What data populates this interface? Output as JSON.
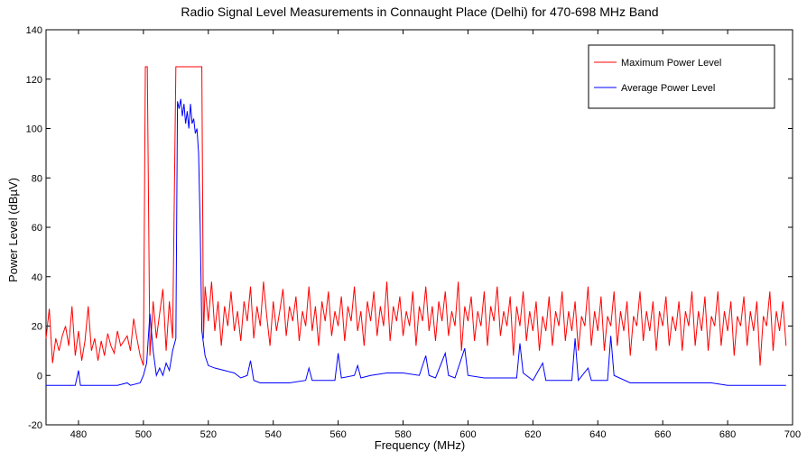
{
  "chart_data": {
    "type": "line",
    "title": "Radio Signal Level Measurements in Connaught Place (Delhi) for 470-698 MHz Band",
    "xlabel": "Frequency (MHz)",
    "ylabel": "Power Level (dBµV)",
    "xlim": [
      470,
      700
    ],
    "ylim": [
      -20,
      140
    ],
    "xticks": [
      480,
      500,
      520,
      540,
      560,
      580,
      600,
      620,
      640,
      660,
      680,
      700
    ],
    "yticks": [
      -20,
      0,
      20,
      40,
      60,
      80,
      100,
      120,
      140
    ],
    "grid": false,
    "legend_position": "top-right",
    "colors": {
      "max": "#ff0000",
      "avg": "#0000ff"
    },
    "series": [
      {
        "name": "Maximum Power Level",
        "points": [
          [
            470,
            15
          ],
          [
            471,
            27
          ],
          [
            472,
            5
          ],
          [
            473,
            15
          ],
          [
            474,
            10
          ],
          [
            475,
            16
          ],
          [
            476,
            20
          ],
          [
            477,
            12
          ],
          [
            478,
            28
          ],
          [
            479,
            8
          ],
          [
            480,
            18
          ],
          [
            481,
            6
          ],
          [
            482,
            14
          ],
          [
            483,
            28
          ],
          [
            484,
            10
          ],
          [
            485,
            15
          ],
          [
            486,
            6
          ],
          [
            487,
            14
          ],
          [
            488,
            8
          ],
          [
            489,
            17
          ],
          [
            490,
            12
          ],
          [
            491,
            9
          ],
          [
            492,
            18
          ],
          [
            493,
            12
          ],
          [
            494,
            14
          ],
          [
            495,
            16
          ],
          [
            496,
            10
          ],
          [
            497,
            23
          ],
          [
            498,
            15
          ],
          [
            499,
            8
          ],
          [
            500,
            4
          ],
          [
            500.6,
            125
          ],
          [
            501.2,
            125
          ],
          [
            502,
            8
          ],
          [
            503,
            30
          ],
          [
            504,
            15
          ],
          [
            505,
            25
          ],
          [
            506,
            35
          ],
          [
            507,
            10
          ],
          [
            508,
            30
          ],
          [
            509,
            15
          ],
          [
            510,
            125
          ],
          [
            518,
            125
          ],
          [
            518.5,
            15
          ],
          [
            519,
            36
          ],
          [
            520,
            22
          ],
          [
            521,
            38
          ],
          [
            522,
            18
          ],
          [
            523,
            30
          ],
          [
            524,
            12
          ],
          [
            525,
            28
          ],
          [
            526,
            20
          ],
          [
            527,
            34
          ],
          [
            528,
            18
          ],
          [
            529,
            26
          ],
          [
            530,
            14
          ],
          [
            531,
            30
          ],
          [
            532,
            22
          ],
          [
            533,
            36
          ],
          [
            534,
            15
          ],
          [
            535,
            28
          ],
          [
            536,
            20
          ],
          [
            537,
            38
          ],
          [
            538,
            24
          ],
          [
            539,
            12
          ],
          [
            540,
            30
          ],
          [
            541,
            18
          ],
          [
            542,
            26
          ],
          [
            543,
            35
          ],
          [
            544,
            16
          ],
          [
            545,
            28
          ],
          [
            546,
            22
          ],
          [
            547,
            32
          ],
          [
            548,
            14
          ],
          [
            549,
            26
          ],
          [
            550,
            20
          ],
          [
            551,
            36
          ],
          [
            552,
            18
          ],
          [
            553,
            28
          ],
          [
            554,
            12
          ],
          [
            555,
            30
          ],
          [
            556,
            22
          ],
          [
            557,
            34
          ],
          [
            558,
            16
          ],
          [
            559,
            26
          ],
          [
            560,
            20
          ],
          [
            561,
            32
          ],
          [
            562,
            14
          ],
          [
            563,
            28
          ],
          [
            564,
            22
          ],
          [
            565,
            36
          ],
          [
            566,
            18
          ],
          [
            567,
            26
          ],
          [
            568,
            12
          ],
          [
            569,
            30
          ],
          [
            570,
            22
          ],
          [
            571,
            34
          ],
          [
            572,
            16
          ],
          [
            573,
            28
          ],
          [
            574,
            20
          ],
          [
            575,
            38
          ],
          [
            576,
            14
          ],
          [
            577,
            28
          ],
          [
            578,
            22
          ],
          [
            579,
            32
          ],
          [
            580,
            16
          ],
          [
            581,
            26
          ],
          [
            582,
            20
          ],
          [
            583,
            34
          ],
          [
            584,
            12
          ],
          [
            585,
            28
          ],
          [
            586,
            22
          ],
          [
            587,
            36
          ],
          [
            588,
            18
          ],
          [
            589,
            28
          ],
          [
            590,
            14
          ],
          [
            591,
            30
          ],
          [
            592,
            22
          ],
          [
            593,
            34
          ],
          [
            594,
            16
          ],
          [
            595,
            26
          ],
          [
            596,
            20
          ],
          [
            597,
            38
          ],
          [
            598,
            10
          ],
          [
            599,
            28
          ],
          [
            600,
            22
          ],
          [
            601,
            32
          ],
          [
            602,
            14
          ],
          [
            603,
            26
          ],
          [
            604,
            20
          ],
          [
            605,
            34
          ],
          [
            606,
            12
          ],
          [
            607,
            28
          ],
          [
            608,
            22
          ],
          [
            609,
            36
          ],
          [
            610,
            16
          ],
          [
            611,
            26
          ],
          [
            612,
            20
          ],
          [
            613,
            32
          ],
          [
            614,
            8
          ],
          [
            615,
            28
          ],
          [
            616,
            20
          ],
          [
            617,
            34
          ],
          [
            618,
            14
          ],
          [
            619,
            26
          ],
          [
            620,
            18
          ],
          [
            621,
            30
          ],
          [
            622,
            10
          ],
          [
            623,
            24
          ],
          [
            624,
            18
          ],
          [
            625,
            32
          ],
          [
            626,
            12
          ],
          [
            627,
            26
          ],
          [
            628,
            20
          ],
          [
            629,
            34
          ],
          [
            630,
            14
          ],
          [
            631,
            26
          ],
          [
            632,
            18
          ],
          [
            633,
            30
          ],
          [
            634,
            10
          ],
          [
            635,
            24
          ],
          [
            636,
            20
          ],
          [
            637,
            36
          ],
          [
            638,
            12
          ],
          [
            639,
            26
          ],
          [
            640,
            18
          ],
          [
            641,
            32
          ],
          [
            642,
            10
          ],
          [
            643,
            24
          ],
          [
            644,
            20
          ],
          [
            645,
            34
          ],
          [
            646,
            12
          ],
          [
            647,
            26
          ],
          [
            648,
            18
          ],
          [
            649,
            30
          ],
          [
            650,
            8
          ],
          [
            651,
            24
          ],
          [
            652,
            20
          ],
          [
            653,
            34
          ],
          [
            654,
            14
          ],
          [
            655,
            26
          ],
          [
            656,
            18
          ],
          [
            657,
            30
          ],
          [
            658,
            10
          ],
          [
            659,
            26
          ],
          [
            660,
            20
          ],
          [
            661,
            32
          ],
          [
            662,
            12
          ],
          [
            663,
            24
          ],
          [
            664,
            18
          ],
          [
            665,
            30
          ],
          [
            666,
            10
          ],
          [
            667,
            26
          ],
          [
            668,
            20
          ],
          [
            669,
            34
          ],
          [
            670,
            12
          ],
          [
            671,
            26
          ],
          [
            672,
            18
          ],
          [
            673,
            32
          ],
          [
            674,
            10
          ],
          [
            675,
            24
          ],
          [
            676,
            20
          ],
          [
            677,
            34
          ],
          [
            678,
            12
          ],
          [
            679,
            26
          ],
          [
            680,
            18
          ],
          [
            681,
            30
          ],
          [
            682,
            8
          ],
          [
            683,
            24
          ],
          [
            684,
            20
          ],
          [
            685,
            32
          ],
          [
            686,
            12
          ],
          [
            687,
            26
          ],
          [
            688,
            18
          ],
          [
            689,
            30
          ],
          [
            690,
            4
          ],
          [
            691,
            24
          ],
          [
            692,
            20
          ],
          [
            693,
            34
          ],
          [
            694,
            10
          ],
          [
            695,
            26
          ],
          [
            696,
            18
          ],
          [
            697,
            30
          ],
          [
            698,
            12
          ]
        ]
      },
      {
        "name": "Average Power Level",
        "points": [
          [
            470,
            -4
          ],
          [
            479,
            -4
          ],
          [
            480,
            2
          ],
          [
            480.6,
            -4
          ],
          [
            492,
            -4
          ],
          [
            495,
            -3
          ],
          [
            496,
            -4
          ],
          [
            499,
            -3
          ],
          [
            500,
            0
          ],
          [
            501,
            5
          ],
          [
            502,
            25
          ],
          [
            503,
            10
          ],
          [
            504,
            0
          ],
          [
            505,
            3
          ],
          [
            506,
            0
          ],
          [
            507,
            5
          ],
          [
            508,
            2
          ],
          [
            509,
            10
          ],
          [
            510,
            15
          ],
          [
            510.5,
            111
          ],
          [
            511,
            108
          ],
          [
            511.5,
            112
          ],
          [
            512,
            105
          ],
          [
            512.5,
            110
          ],
          [
            513,
            102
          ],
          [
            513.5,
            107
          ],
          [
            514,
            100
          ],
          [
            514.5,
            110
          ],
          [
            515,
            102
          ],
          [
            515.5,
            104
          ],
          [
            516,
            98
          ],
          [
            516.5,
            100
          ],
          [
            517,
            90
          ],
          [
            517.5,
            60
          ],
          [
            518,
            18
          ],
          [
            519,
            8
          ],
          [
            520,
            4
          ],
          [
            522,
            3
          ],
          [
            525,
            2
          ],
          [
            528,
            1
          ],
          [
            530,
            -1
          ],
          [
            532,
            0
          ],
          [
            533,
            6
          ],
          [
            534,
            -2
          ],
          [
            536,
            -3
          ],
          [
            540,
            -3
          ],
          [
            545,
            -3
          ],
          [
            550,
            -2
          ],
          [
            551,
            3
          ],
          [
            552,
            -2
          ],
          [
            555,
            -2
          ],
          [
            559,
            -2
          ],
          [
            560,
            9
          ],
          [
            561,
            -1
          ],
          [
            565,
            0
          ],
          [
            566,
            4
          ],
          [
            567,
            -1
          ],
          [
            570,
            0
          ],
          [
            575,
            1
          ],
          [
            580,
            1
          ],
          [
            585,
            0
          ],
          [
            587,
            8
          ],
          [
            588,
            0
          ],
          [
            590,
            -1
          ],
          [
            593,
            9
          ],
          [
            594,
            0
          ],
          [
            596,
            -1
          ],
          [
            599,
            11
          ],
          [
            600,
            0
          ],
          [
            605,
            -1
          ],
          [
            610,
            -1
          ],
          [
            615,
            -1
          ],
          [
            616,
            13
          ],
          [
            617,
            1
          ],
          [
            620,
            -2
          ],
          [
            623,
            5
          ],
          [
            624,
            -2
          ],
          [
            628,
            -2
          ],
          [
            632,
            -2
          ],
          [
            633,
            15
          ],
          [
            634,
            -2
          ],
          [
            637,
            3
          ],
          [
            638,
            -2
          ],
          [
            643,
            -2
          ],
          [
            644,
            16
          ],
          [
            645,
            0
          ],
          [
            650,
            -3
          ],
          [
            655,
            -3
          ],
          [
            660,
            -3
          ],
          [
            665,
            -3
          ],
          [
            670,
            -3
          ],
          [
            675,
            -3
          ],
          [
            680,
            -4
          ],
          [
            685,
            -4
          ],
          [
            690,
            -4
          ],
          [
            695,
            -4
          ],
          [
            698,
            -4
          ]
        ]
      }
    ]
  }
}
